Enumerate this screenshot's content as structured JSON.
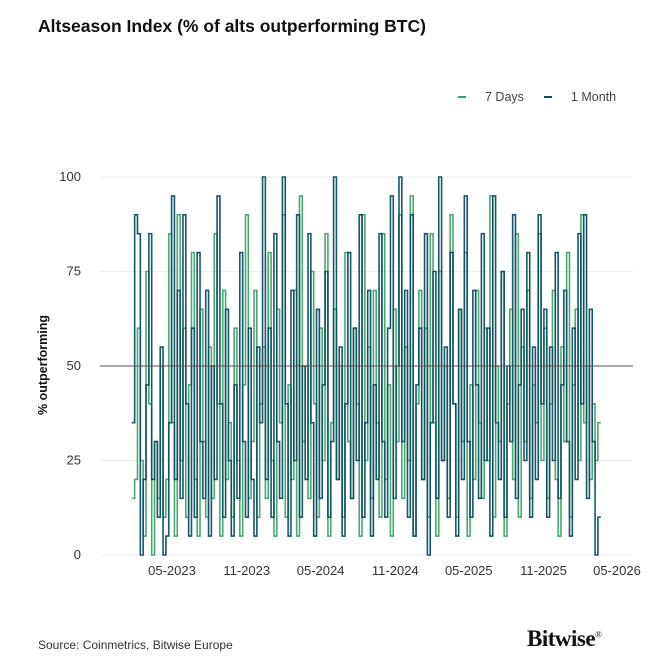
{
  "chart_data": {
    "type": "line",
    "step": true,
    "title": "Altseason Index (% of alts outperforming BTC)",
    "ylabel": "% outperforming",
    "xlabel": "",
    "ylim": [
      0,
      100
    ],
    "yticks": [
      0,
      25,
      50,
      75,
      100
    ],
    "xticks": [
      "05-2023",
      "11-2023",
      "05-2024",
      "11-2024",
      "05-2025",
      "11-2025",
      "05-2026"
    ],
    "reference_line": 50,
    "grid": "horizontal",
    "legend_position": "top-right",
    "x_start": "2023-01-22",
    "frequency": "weekly",
    "series": [
      {
        "name": "7 Days",
        "color": "#3fa36b",
        "values": [
          15,
          20,
          60,
          25,
          5,
          75,
          40,
          0,
          30,
          15,
          50,
          10,
          20,
          85,
          35,
          5,
          90,
          25,
          60,
          10,
          45,
          80,
          20,
          5,
          65,
          30,
          10,
          55,
          15,
          85,
          40,
          5,
          70,
          20,
          35,
          10,
          60,
          25,
          5,
          45,
          90,
          15,
          30,
          70,
          10,
          40,
          55,
          15,
          80,
          25,
          5,
          65,
          35,
          90,
          10,
          45,
          20,
          70,
          5,
          95,
          30,
          50,
          15,
          75,
          40,
          10,
          60,
          25,
          85,
          5,
          35,
          65,
          20,
          50,
          10,
          80,
          30,
          15,
          60,
          40,
          5,
          90,
          25,
          55,
          15,
          70,
          35,
          10,
          85,
          20,
          45,
          5,
          65,
          30,
          90,
          15,
          55,
          25,
          95,
          5,
          40,
          70,
          20,
          60,
          10,
          85,
          35,
          5,
          75,
          25,
          50,
          15,
          90,
          40,
          10,
          65,
          30,
          80,
          5,
          45,
          20,
          70,
          35,
          15,
          60,
          25,
          95,
          10,
          50,
          30,
          75,
          5,
          40,
          65,
          20,
          85,
          10,
          55,
          30,
          70,
          15,
          45,
          35,
          85,
          25,
          60,
          15,
          40,
          70,
          20,
          5,
          55,
          30,
          80,
          10,
          45,
          65,
          25,
          90,
          35,
          50,
          20,
          40,
          25,
          35
        ]
      },
      {
        "name": "1 Month",
        "color": "#0b4f5e",
        "values": [
          35,
          90,
          85,
          0,
          20,
          45,
          85,
          20,
          30,
          10,
          55,
          0,
          5,
          35,
          95,
          20,
          70,
          15,
          90,
          40,
          5,
          60,
          10,
          80,
          30,
          15,
          70,
          5,
          50,
          20,
          95,
          40,
          10,
          65,
          25,
          5,
          45,
          15,
          80,
          30,
          10,
          60,
          20,
          5,
          55,
          35,
          100,
          20,
          60,
          10,
          85,
          30,
          15,
          100,
          40,
          5,
          70,
          25,
          90,
          10,
          50,
          20,
          85,
          35,
          5,
          65,
          15,
          45,
          75,
          10,
          30,
          100,
          20,
          55,
          5,
          40,
          80,
          15,
          60,
          25,
          90,
          10,
          35,
          70,
          5,
          45,
          20,
          85,
          30,
          10,
          60,
          95,
          15,
          50,
          100,
          30,
          70,
          10,
          90,
          5,
          45,
          60,
          20,
          85,
          0,
          35,
          75,
          15,
          100,
          25,
          55,
          10,
          80,
          40,
          5,
          65,
          20,
          95,
          30,
          10,
          70,
          45,
          15,
          85,
          25,
          60,
          5,
          95,
          35,
          20,
          75,
          10,
          50,
          30,
          90,
          15,
          45,
          65,
          25,
          80,
          10,
          55,
          20,
          90,
          40,
          65,
          10,
          55,
          25,
          80,
          15,
          45,
          70,
          30,
          5,
          60,
          20,
          85,
          40,
          90,
          15,
          65,
          30,
          0,
          10
        ]
      }
    ]
  },
  "footer": {
    "source": "Source: Coinmetrics, Bitwise Europe",
    "logo": "Bitwise",
    "logo_mark": "®"
  }
}
